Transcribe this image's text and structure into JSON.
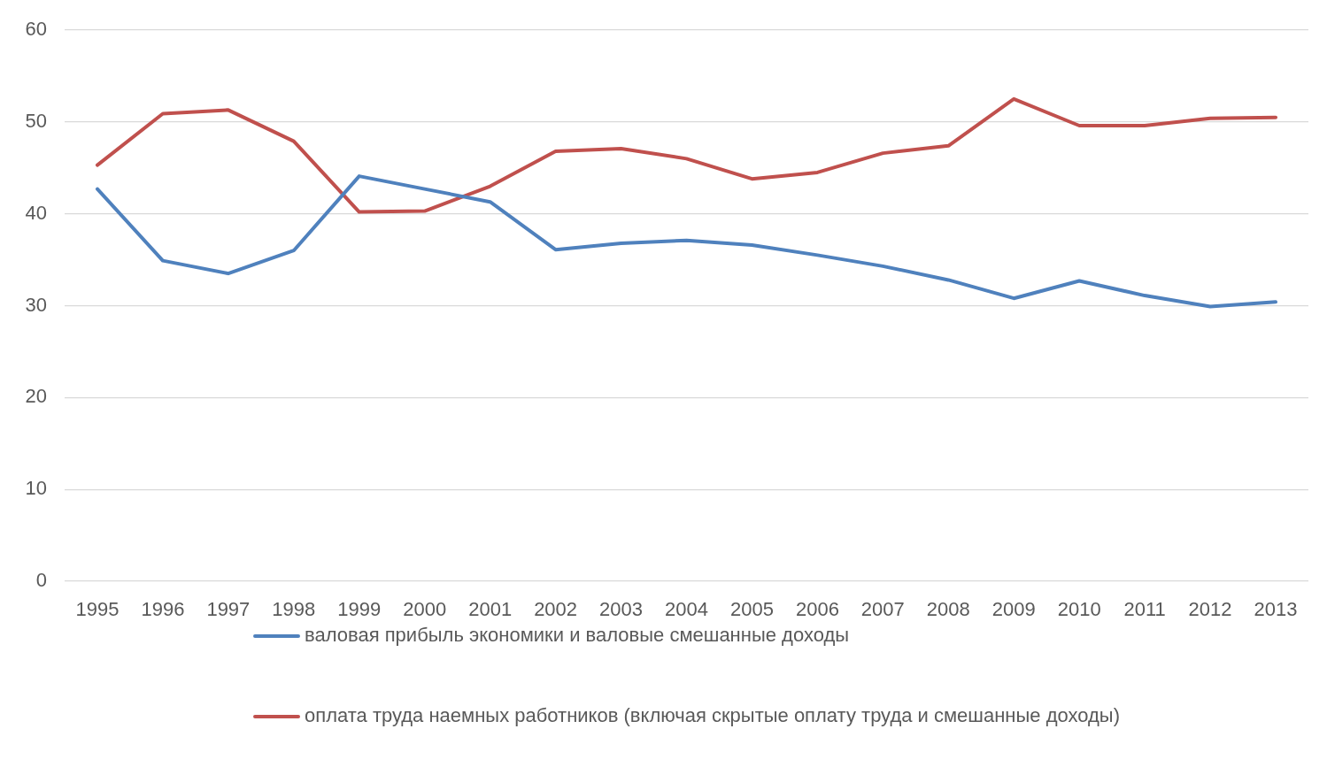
{
  "chart_data": {
    "type": "line",
    "categories": [
      "1995",
      "1996",
      "1997",
      "1998",
      "1999",
      "2000",
      "2001",
      "2002",
      "2003",
      "2004",
      "2005",
      "2006",
      "2007",
      "2008",
      "2009",
      "2010",
      "2011",
      "2012",
      "2013"
    ],
    "series": [
      {
        "name": "валовая прибыль экономики и валовые смешанные доходы",
        "color": "#4f81bd",
        "values": [
          42.7,
          34.9,
          33.5,
          36.0,
          44.1,
          42.7,
          41.3,
          36.1,
          36.8,
          37.1,
          36.6,
          35.5,
          34.3,
          32.8,
          30.8,
          32.7,
          31.1,
          29.9,
          30.4
        ]
      },
      {
        "name": "оплата труда наемных работников (включая скрытые оплату труда и смешанные доходы)",
        "color": "#c0504d",
        "values": [
          45.3,
          50.9,
          51.3,
          47.9,
          40.2,
          40.3,
          43.0,
          46.8,
          47.1,
          46.0,
          43.8,
          44.5,
          46.6,
          47.4,
          52.5,
          49.6,
          49.6,
          50.4,
          50.5
        ]
      }
    ],
    "ylim": [
      0,
      60
    ],
    "yticks": [
      0,
      10,
      20,
      30,
      40,
      50,
      60
    ],
    "grid": "y",
    "legend": "bottom"
  }
}
